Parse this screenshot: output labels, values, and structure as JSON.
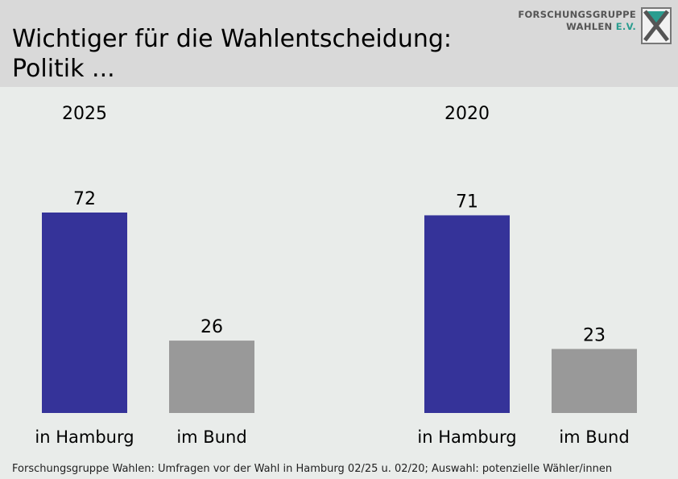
{
  "header": {
    "title": "Wichtiger für die Wahlentscheidung:\nPolitik ...",
    "logo_line1": "FORSCHUNGSGRUPPE",
    "logo_line2": "WAHLEN",
    "logo_line2_suffix": "E.V."
  },
  "footer": {
    "source": "Forschungsgruppe Wahlen: Umfragen vor der Wahl in Hamburg 02/25 u. 02/20; Auswahl: potenzielle Wähler/innen"
  },
  "chart_data": {
    "type": "bar",
    "title": "Wichtiger für die Wahlentscheidung: Politik ...",
    "groups": [
      {
        "label": "2025",
        "categories": [
          "in Hamburg",
          "im Bund"
        ],
        "values": [
          72,
          26
        ]
      },
      {
        "label": "2020",
        "categories": [
          "in Hamburg",
          "im Bund"
        ],
        "values": [
          71,
          23
        ]
      }
    ],
    "colors": [
      "#353399",
      "#999999"
    ],
    "ylim": [
      0,
      72
    ],
    "grid": false,
    "legend": "none"
  }
}
